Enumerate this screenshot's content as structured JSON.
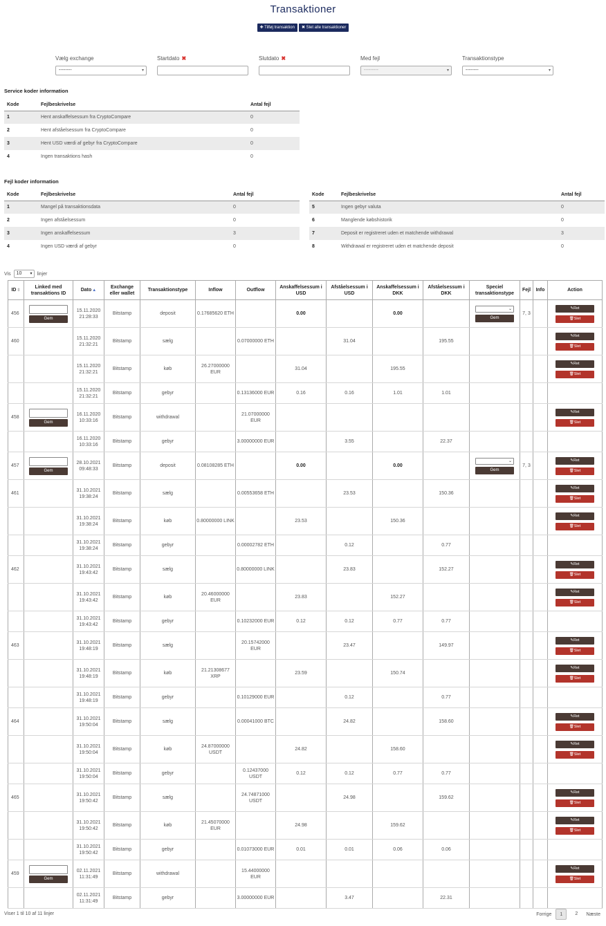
{
  "header": {
    "title": "Transaktioner",
    "add_btn": "✚ Tilføj transaktion",
    "delete_all_btn": "✖ Slet alle transaktioner"
  },
  "filters": [
    {
      "label": "Vælg exchange",
      "value": "--------",
      "required": false,
      "type": "select",
      "disabled": false
    },
    {
      "label": "Startdato",
      "value": "",
      "required": true,
      "type": "input",
      "disabled": false
    },
    {
      "label": "Slutdato",
      "value": "",
      "required": true,
      "type": "input",
      "disabled": false
    },
    {
      "label": "Med fejl",
      "value": "---------",
      "required": false,
      "type": "select",
      "disabled": true
    },
    {
      "label": "Transaktionstype",
      "value": "--------",
      "required": false,
      "type": "select",
      "disabled": false
    }
  ],
  "service_codes": {
    "title": "Service koder information",
    "headers": [
      "Kode",
      "Fejlbeskrivelse",
      "Antal fejl"
    ],
    "rows": [
      [
        "1",
        "Hent anskaffelsessum fra CryptoCompare",
        "0"
      ],
      [
        "2",
        "Hent afståelsessum fra CryptoCompare",
        "0"
      ],
      [
        "3",
        "Hent USD værdi af gebyr fra CryptoCompare",
        "0"
      ],
      [
        "4",
        "Ingen transaktions hash",
        "0"
      ]
    ]
  },
  "error_codes": {
    "title": "Fejl koder information",
    "headers": [
      "Kode",
      "Fejlbeskrivelse",
      "Antal fejl"
    ],
    "left_rows": [
      [
        "1",
        "Mangel på transaktionsdata",
        "0"
      ],
      [
        "2",
        "Ingen afståelsessum",
        "0"
      ],
      [
        "3",
        "Ingen anskaffelsessum",
        "3"
      ],
      [
        "4",
        "Ingen USD værdi af gebyr",
        "0"
      ]
    ],
    "right_rows": [
      [
        "5",
        "Ingen gebyr valuta",
        "0"
      ],
      [
        "6",
        "Manglende købshistorik",
        "0"
      ],
      [
        "7",
        "Deposit er registreret uden et matchende withdrawal",
        "3"
      ],
      [
        "8",
        "Withdrawal er registreret uden et matchende deposit",
        "0"
      ]
    ]
  },
  "length": {
    "prefix": "Vis",
    "value": "10",
    "suffix": "linjer"
  },
  "table": {
    "headers": [
      "ID",
      "Linked med transaktions ID",
      "Dato",
      "Exchange eller wallet",
      "Transaktionstype",
      "Inflow",
      "Outflow",
      "Anskaffelsessum i USD",
      "Afståelsessum i USD",
      "Anskaffelsessum i DKK",
      "Afståelsessum i DKK",
      "Speciel transaktionstype",
      "Fejl",
      "Info",
      "Action"
    ],
    "gem_label": "Gem",
    "ret_label": "✎Ret",
    "slet_label": "🗑Slet",
    "rows": [
      {
        "id": "456",
        "link": true,
        "date": "15.11.2020 21:28:33",
        "ex": "Bitstamp",
        "type": "deposit",
        "in": "0.17685620 ETH",
        "out": "",
        "au": "0.00",
        "su": "",
        "ad": "0.00",
        "sd": "",
        "special": true,
        "fejl": "7, 3",
        "action": true,
        "grp": true,
        "h": 40,
        "bold": true
      },
      {
        "id": "460",
        "link": false,
        "date": "15.11.2020 21:32:21",
        "ex": "Bitstamp",
        "type": "sælg",
        "in": "",
        "out": "0.07000000 ETH",
        "au": "",
        "su": "31.04",
        "ad": "",
        "sd": "195.55",
        "special": false,
        "fejl": "",
        "action": true,
        "grp": true,
        "h": 40
      },
      {
        "id": "",
        "link": false,
        "date": "15.11.2020 21:32:21",
        "ex": "Bitstamp",
        "type": "køb",
        "in": "26.27000000 EUR",
        "out": "",
        "au": "31.04",
        "su": "",
        "ad": "195.55",
        "sd": "",
        "special": false,
        "fejl": "",
        "action": true,
        "grp": false,
        "h": 40
      },
      {
        "id": "",
        "link": false,
        "date": "15.11.2020 21:32:21",
        "ex": "Bitstamp",
        "type": "gebyr",
        "in": "",
        "out": "0.13136000 EUR",
        "au": "0.16",
        "su": "0.16",
        "ad": "1.01",
        "sd": "1.01",
        "special": false,
        "fejl": "",
        "action": false,
        "grp": false,
        "h": 30
      },
      {
        "id": "458",
        "link": true,
        "date": "16.11.2020 10:33:16",
        "ex": "Bitstamp",
        "type": "withdrawal",
        "in": "",
        "out": "21.07000000 EUR",
        "au": "",
        "su": "",
        "ad": "",
        "sd": "",
        "special": false,
        "fejl": "",
        "action": true,
        "grp": true,
        "h": 40
      },
      {
        "id": "",
        "link": false,
        "date": "16.11.2020 10:33:16",
        "ex": "Bitstamp",
        "type": "gebyr",
        "in": "",
        "out": "3.00000000 EUR",
        "au": "",
        "su": "3.55",
        "ad": "",
        "sd": "22.37",
        "special": false,
        "fejl": "",
        "action": false,
        "grp": false,
        "h": 30
      },
      {
        "id": "457",
        "link": true,
        "date": "28.10.2021 09:48:33",
        "ex": "Bitstamp",
        "type": "deposit",
        "in": "0.08108285 ETH",
        "out": "",
        "au": "0.00",
        "su": "",
        "ad": "0.00",
        "sd": "",
        "special": true,
        "fejl": "7, 3",
        "action": true,
        "grp": true,
        "h": 40,
        "bold": true
      },
      {
        "id": "461",
        "link": false,
        "date": "31.10.2021 19:38:24",
        "ex": "Bitstamp",
        "type": "sælg",
        "in": "",
        "out": "0.00553658 ETH",
        "au": "",
        "su": "23.53",
        "ad": "",
        "sd": "150.36",
        "special": false,
        "fejl": "",
        "action": true,
        "grp": true,
        "h": 40
      },
      {
        "id": "",
        "link": false,
        "date": "31.10.2021 19:38:24",
        "ex": "Bitstamp",
        "type": "køb",
        "in": "0.80000000 LINK",
        "out": "",
        "au": "23.53",
        "su": "",
        "ad": "150.36",
        "sd": "",
        "special": false,
        "fejl": "",
        "action": true,
        "grp": false,
        "h": 40
      },
      {
        "id": "",
        "link": false,
        "date": "31.10.2021 19:38:24",
        "ex": "Bitstamp",
        "type": "gebyr",
        "in": "",
        "out": "0.00002782 ETH",
        "au": "",
        "su": "0.12",
        "ad": "",
        "sd": "0.77",
        "special": false,
        "fejl": "",
        "action": false,
        "grp": false,
        "h": 30
      },
      {
        "id": "462",
        "link": false,
        "date": "31.10.2021 19:43:42",
        "ex": "Bitstamp",
        "type": "sælg",
        "in": "",
        "out": "0.80000000 LINK",
        "au": "",
        "su": "23.83",
        "ad": "",
        "sd": "152.27",
        "special": false,
        "fejl": "",
        "action": true,
        "grp": true,
        "h": 40
      },
      {
        "id": "",
        "link": false,
        "date": "31.10.2021 19:43:42",
        "ex": "Bitstamp",
        "type": "køb",
        "in": "20.46000000 EUR",
        "out": "",
        "au": "23.83",
        "su": "",
        "ad": "152.27",
        "sd": "",
        "special": false,
        "fejl": "",
        "action": true,
        "grp": false,
        "h": 40
      },
      {
        "id": "",
        "link": false,
        "date": "31.10.2021 19:43:42",
        "ex": "Bitstamp",
        "type": "gebyr",
        "in": "",
        "out": "0.10232000 EUR",
        "au": "0.12",
        "su": "0.12",
        "ad": "0.77",
        "sd": "0.77",
        "special": false,
        "fejl": "",
        "action": false,
        "grp": false,
        "h": 30
      },
      {
        "id": "463",
        "link": false,
        "date": "31.10.2021 19:48:19",
        "ex": "Bitstamp",
        "type": "sælg",
        "in": "",
        "out": "20.15742000 EUR",
        "au": "",
        "su": "23.47",
        "ad": "",
        "sd": "149.97",
        "special": false,
        "fejl": "",
        "action": true,
        "grp": true,
        "h": 40
      },
      {
        "id": "",
        "link": false,
        "date": "31.10.2021 19:48:19",
        "ex": "Bitstamp",
        "type": "køb",
        "in": "21.21308677 XRP",
        "out": "",
        "au": "23.59",
        "su": "",
        "ad": "150.74",
        "sd": "",
        "special": false,
        "fejl": "",
        "action": true,
        "grp": false,
        "h": 40
      },
      {
        "id": "",
        "link": false,
        "date": "31.10.2021 19:48:19",
        "ex": "Bitstamp",
        "type": "gebyr",
        "in": "",
        "out": "0.10129000 EUR",
        "au": "",
        "su": "0.12",
        "ad": "",
        "sd": "0.77",
        "special": false,
        "fejl": "",
        "action": false,
        "grp": false,
        "h": 30
      },
      {
        "id": "464",
        "link": false,
        "date": "31.10.2021 19:50:04",
        "ex": "Bitstamp",
        "type": "sælg",
        "in": "",
        "out": "0.00041000 BTC",
        "au": "",
        "su": "24.82",
        "ad": "",
        "sd": "158.60",
        "special": false,
        "fejl": "",
        "action": true,
        "grp": true,
        "h": 40
      },
      {
        "id": "",
        "link": false,
        "date": "31.10.2021 19:50:04",
        "ex": "Bitstamp",
        "type": "køb",
        "in": "24.87000000 USDT",
        "out": "",
        "au": "24.82",
        "su": "",
        "ad": "158.60",
        "sd": "",
        "special": false,
        "fejl": "",
        "action": true,
        "grp": false,
        "h": 40
      },
      {
        "id": "",
        "link": false,
        "date": "31.10.2021 19:50:04",
        "ex": "Bitstamp",
        "type": "gebyr",
        "in": "",
        "out": "0.12437000 USDT",
        "au": "0.12",
        "su": "0.12",
        "ad": "0.77",
        "sd": "0.77",
        "special": false,
        "fejl": "",
        "action": false,
        "grp": false,
        "h": 30
      },
      {
        "id": "465",
        "link": false,
        "date": "31.10.2021 19:50:42",
        "ex": "Bitstamp",
        "type": "sælg",
        "in": "",
        "out": "24.74871000 USDT",
        "au": "",
        "su": "24.98",
        "ad": "",
        "sd": "159.62",
        "special": false,
        "fejl": "",
        "action": true,
        "grp": true,
        "h": 40
      },
      {
        "id": "",
        "link": false,
        "date": "31.10.2021 19:50:42",
        "ex": "Bitstamp",
        "type": "køb",
        "in": "21.45070000 EUR",
        "out": "",
        "au": "24.98",
        "su": "",
        "ad": "159.62",
        "sd": "",
        "special": false,
        "fejl": "",
        "action": true,
        "grp": false,
        "h": 40
      },
      {
        "id": "",
        "link": false,
        "date": "31.10.2021 19:50:42",
        "ex": "Bitstamp",
        "type": "gebyr",
        "in": "",
        "out": "0.01073000 EUR",
        "au": "0.01",
        "su": "0.01",
        "ad": "0.06",
        "sd": "0.06",
        "special": false,
        "fejl": "",
        "action": false,
        "grp": false,
        "h": 30
      },
      {
        "id": "459",
        "link": true,
        "date": "02.11.2021 11:31:49",
        "ex": "Bitstamp",
        "type": "withdrawal",
        "in": "",
        "out": "15.44000000 EUR",
        "au": "",
        "su": "",
        "ad": "",
        "sd": "",
        "special": false,
        "fejl": "",
        "action": true,
        "grp": true,
        "h": 40
      },
      {
        "id": "",
        "link": false,
        "date": "02.11.2021 11:31:49",
        "ex": "Bitstamp",
        "type": "gebyr",
        "in": "",
        "out": "3.00000000 EUR",
        "au": "",
        "su": "3.47",
        "ad": "",
        "sd": "22.31",
        "special": false,
        "fejl": "",
        "action": false,
        "grp": false,
        "h": 30
      }
    ]
  },
  "footer": {
    "info": "Viser 1 til 10 af 11 linjer",
    "prev": "Forrige",
    "pages": [
      "1",
      "2"
    ],
    "next": "Næste"
  },
  "colors": {
    "primary": "#1b2a5e",
    "brown": "#4a3a34",
    "red": "#b3342b",
    "error": "#d8322e"
  }
}
